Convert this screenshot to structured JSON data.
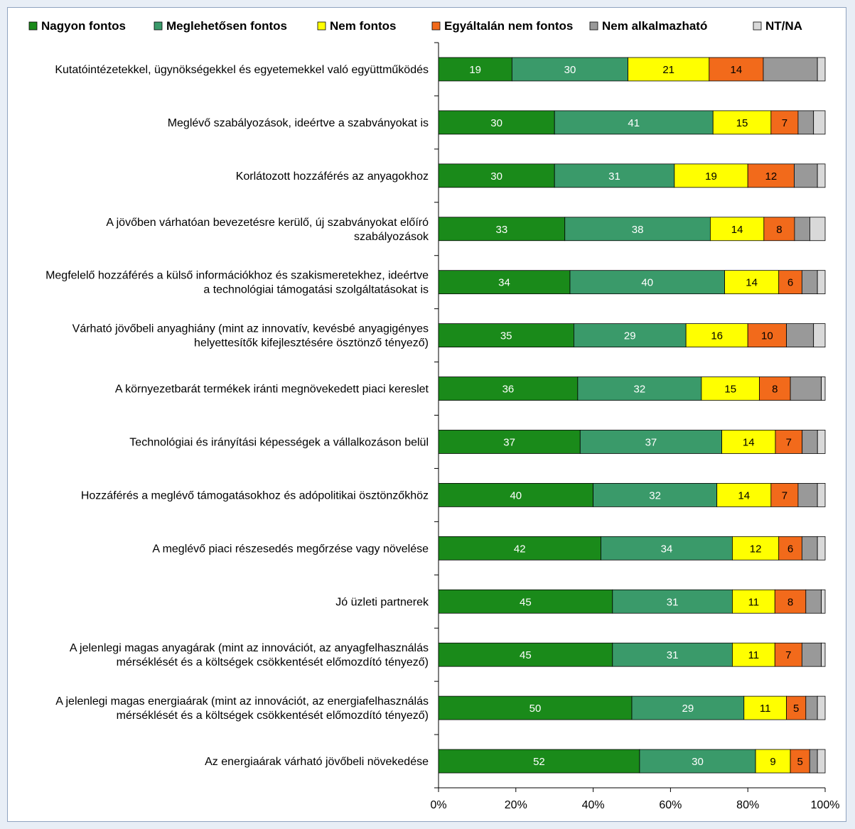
{
  "chart_data": {
    "type": "bar",
    "orientation": "horizontal",
    "stacked": "percent",
    "categories": [
      "Kutatóintézetekkel, ügynökségekkel és egyetemekkel való együttműködés",
      "Meglévő szabályozások, ideértve a szabványokat is",
      "Korlátozott hozzáférés az anyagokhoz",
      "A jövőben várhatóan bevezetésre kerülő, új szabványokat előíró szabályozások",
      "Megfelelő hozzáférés a külső információkhoz és szakismeretekhez, ideértve a technológiai támogatási szolgáltatásokat is",
      "Várható jövőbeli anyaghiány (mint az innovatív, kevésbé anyagigényes helyettesítők kifejlesztésére ösztönző tényező)",
      "A környezetbarát termékek iránti megnövekedett piaci kereslet",
      "Technológiai és irányítási képességek a vállalkozáson belül",
      "Hozzáférés a meglévő támogatásokhoz és adópolitikai ösztönzőkhöz",
      "A meglévő piaci részesedés megőrzése vagy növelése",
      "Jó üzleti partnerek",
      "A jelenlegi magas anyagárak (mint az innovációt, az anyagfelhasználás mérséklését és a költségek csökkentését előmozdító tényező)",
      "A jelenlegi magas energiaárak (mint az innovációt, az energiafelhasználás mérséklését és a költségek csökkentését előmozdító tényező)",
      "Az energiaárak várható jövőbeli növekedése"
    ],
    "category_lines": [
      [
        "Kutatóintézetekkel, ügynökségekkel és egyetemekkel való együttműködés"
      ],
      [
        "Meglévő szabályozások, ideértve a szabványokat is"
      ],
      [
        "Korlátozott hozzáférés az anyagokhoz"
      ],
      [
        "A jövőben várhatóan bevezetésre kerülő, új szabványokat előíró",
        "szabályozások"
      ],
      [
        "Megfelelő hozzáférés a külső információkhoz és szakismeretekhez, ideértve",
        "a technológiai támogatási szolgáltatásokat is"
      ],
      [
        "Várható jövőbeli anyaghiány (mint az innovatív, kevésbé anyagigényes",
        "helyettesítők kifejlesztésére ösztönző tényező)"
      ],
      [
        "A környezetbarát termékek iránti megnövekedett piaci kereslet"
      ],
      [
        "Technológiai és irányítási képességek a vállalkozáson belül"
      ],
      [
        "Hozzáférés a meglévő támogatásokhoz és adópolitikai ösztönzőkhöz"
      ],
      [
        "A meglévő piaci részesedés megőrzése vagy növelése"
      ],
      [
        "Jó üzleti partnerek"
      ],
      [
        "A jelenlegi magas anyagárak (mint az innovációt, az anyagfelhasználás",
        "mérséklését és a költségek csökkentését előmozdító tényező)"
      ],
      [
        "A jelenlegi magas energiaárak (mint az innovációt, az energiafelhasználás",
        "mérséklését és a költségek csökkentését előmozdító tényező)"
      ],
      [
        "Az energiaárak várható jövőbeli növekedése"
      ]
    ],
    "series": [
      {
        "name": "Nagyon fontos",
        "color": "#1a8a1a",
        "label_color": "#ffffff",
        "values": [
          19,
          30,
          30,
          33,
          34,
          35,
          36,
          37,
          40,
          42,
          45,
          45,
          50,
          52
        ]
      },
      {
        "name": "Meglehetősen fontos",
        "color": "#3a9a6a",
        "label_color": "#ffffff",
        "values": [
          30,
          41,
          31,
          38,
          40,
          29,
          32,
          37,
          32,
          34,
          31,
          31,
          29,
          30
        ]
      },
      {
        "name": "Nem fontos",
        "color": "#ffff00",
        "label_color": "#000000",
        "values": [
          21,
          15,
          19,
          14,
          14,
          16,
          15,
          14,
          14,
          12,
          11,
          11,
          11,
          9
        ]
      },
      {
        "name": "Egyáltalán nem fontos",
        "color": "#f26a1b",
        "label_color": "#000000",
        "values": [
          14,
          7,
          12,
          8,
          6,
          10,
          8,
          7,
          7,
          6,
          8,
          7,
          5,
          5
        ]
      },
      {
        "name": "Nem alkalmazható",
        "color": "#999999",
        "label_color": "#000000",
        "values": [
          14,
          4,
          6,
          4,
          4,
          7,
          8,
          4,
          5,
          4,
          4,
          5,
          3,
          2
        ]
      },
      {
        "name": "NT/NA",
        "color": "#d9d9d9",
        "label_color": "#000000",
        "values": [
          2,
          3,
          2,
          4,
          2,
          3,
          1,
          2,
          2,
          2,
          1,
          1,
          2,
          2
        ]
      }
    ],
    "label_min_value": 5,
    "xaxis": {
      "ticks": [
        "0%",
        "20%",
        "40%",
        "60%",
        "80%",
        "100%"
      ],
      "range": [
        0,
        100
      ]
    },
    "legend_position": "top",
    "grid": false
  }
}
